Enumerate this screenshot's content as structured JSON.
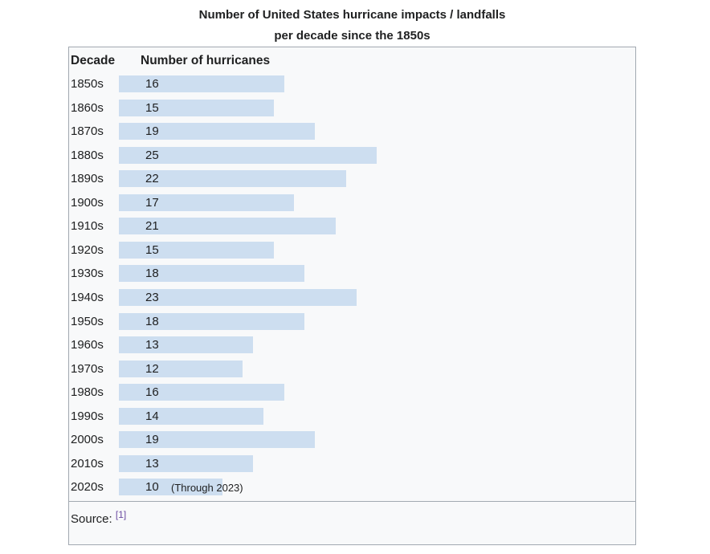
{
  "title": {
    "line1": "Number of United States hurricane impacts / landfalls",
    "line2": "per decade since the 1850s"
  },
  "table": {
    "col1_header": "Decade",
    "col2_header": "Number of hurricanes",
    "source_label": "Source:",
    "source_ref": "[1]"
  },
  "colors": {
    "bar": "#cddef0",
    "panel_background": "#f8f9fa",
    "panel_border": "#a2a9b1",
    "text": "#202122",
    "source_link": "#6b4ba1"
  },
  "chart_data": {
    "type": "bar",
    "orientation": "horizontal",
    "title": "Number of United States hurricane impacts / landfalls per decade since the 1850s",
    "xlabel": "Number of hurricanes",
    "ylabel": "Decade",
    "xlim": [
      0,
      25
    ],
    "grid": false,
    "legend": "none",
    "categories": [
      "1850s",
      "1860s",
      "1870s",
      "1880s",
      "1890s",
      "1900s",
      "1910s",
      "1920s",
      "1930s",
      "1940s",
      "1950s",
      "1960s",
      "1970s",
      "1980s",
      "1990s",
      "2000s",
      "2010s",
      "2020s"
    ],
    "values": [
      16,
      15,
      19,
      25,
      22,
      17,
      21,
      15,
      18,
      23,
      18,
      13,
      12,
      16,
      14,
      19,
      13,
      10
    ],
    "annotations": [
      {
        "index": 17,
        "category": "2020s",
        "text": "(Through 2023)"
      }
    ]
  }
}
